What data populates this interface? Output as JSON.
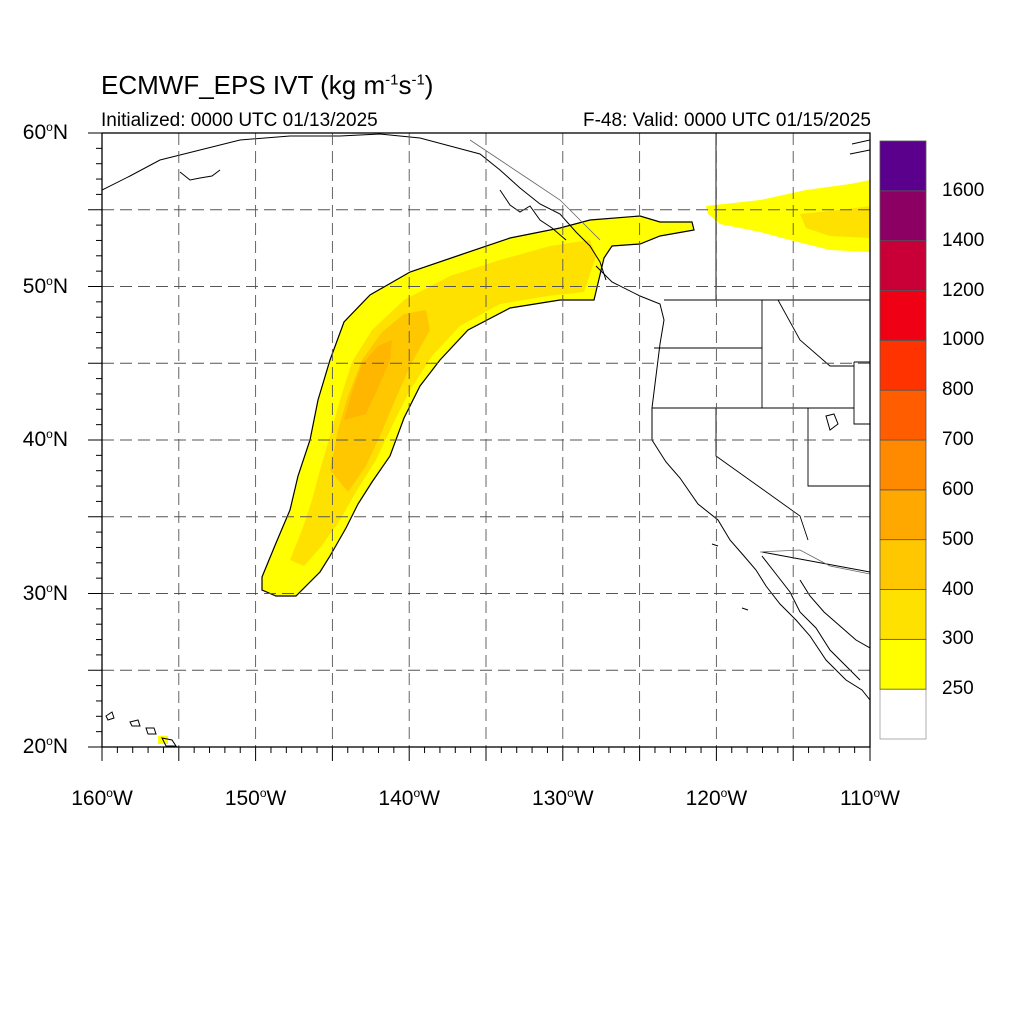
{
  "title": {
    "main": "ECMWF_EPS IVT (kg m",
    "exp1": "-1",
    "mid": "s",
    "exp2": "-1",
    "end": ")"
  },
  "subtitle_left": "Initialized: 0000 UTC 01/13/2025",
  "subtitle_right": "F-48: Valid: 0000 UTC 01/15/2025",
  "map": {
    "projection": "cylindrical equidistant",
    "lon_range": [
      -160,
      -110
    ],
    "lat_range": [
      20,
      60
    ],
    "lat_labels": [
      {
        "value": 60,
        "num": "60",
        "hemi": "N"
      },
      {
        "value": 50,
        "num": "50",
        "hemi": "N"
      },
      {
        "value": 40,
        "num": "40",
        "hemi": "N"
      },
      {
        "value": 30,
        "num": "30",
        "hemi": "N"
      },
      {
        "value": 20,
        "num": "20",
        "hemi": "N"
      }
    ],
    "lon_labels": [
      {
        "value": -160,
        "num": "160",
        "hemi": "W"
      },
      {
        "value": -150,
        "num": "150",
        "hemi": "W"
      },
      {
        "value": -140,
        "num": "140",
        "hemi": "W"
      },
      {
        "value": -130,
        "num": "130",
        "hemi": "W"
      },
      {
        "value": -120,
        "num": "120",
        "hemi": "W"
      },
      {
        "value": -110,
        "num": "110",
        "hemi": "W"
      }
    ],
    "gridlines": "dashed",
    "grid_lat": [
      25,
      30,
      35,
      40,
      45,
      50,
      55
    ],
    "grid_lon": [
      -155,
      -150,
      -145,
      -140,
      -135,
      -130,
      -125,
      -120,
      -115
    ]
  },
  "colorbar": {
    "levels": [
      "250",
      "300",
      "400",
      "500",
      "600",
      "700",
      "800",
      "1000",
      "1200",
      "1400",
      "1600"
    ],
    "colors": [
      "#ffffff",
      "#ffff00",
      "#ffe100",
      "#ffc700",
      "#ffa800",
      "#ff8a00",
      "#ff5d00",
      "#ff3300",
      "#f00014",
      "#c80037",
      "#8c0064",
      "#5a008c"
    ]
  },
  "ivt_plume": {
    "description_level_colors": {
      "low": "#ffff00",
      "mid": "#ffe100",
      "core": "#ffc700",
      "max": "#ffa800"
    }
  }
}
